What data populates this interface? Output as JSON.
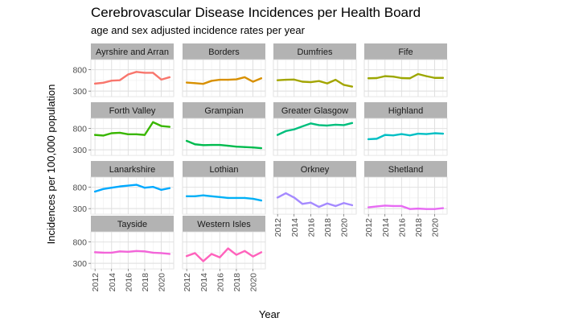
{
  "chart_data": {
    "type": "line",
    "title": "Cerebrovascular Disease Incidences per Health Board",
    "subtitle": "age and sex adjusted incidence rates per year",
    "xlabel": "Year",
    "ylabel": "Incidences per 100,000 population",
    "x": [
      2012,
      2013,
      2014,
      2015,
      2016,
      2017,
      2018,
      2019,
      2020,
      2021
    ],
    "x_ticks": [
      "2012",
      "2014",
      "2016",
      "2018",
      "2020"
    ],
    "y_ticks": [
      "300",
      "800"
    ],
    "xlim": [
      2011.5,
      2021.5
    ],
    "ylim": [
      170,
      1040
    ],
    "grid": true,
    "legend": "none",
    "series": [
      {
        "name": "Ayrshire and Arran",
        "color": "#F8766D",
        "values": [
          475,
          495,
          545,
          555,
          690,
          750,
          730,
          730,
          570,
          625
        ]
      },
      {
        "name": "Borders",
        "color": "#D89000",
        "values": [
          500,
          485,
          470,
          540,
          565,
          565,
          575,
          625,
          520,
          600
        ]
      },
      {
        "name": "Dumfries",
        "color": "#A3A500",
        "values": [
          555,
          565,
          570,
          520,
          510,
          535,
          480,
          565,
          445,
          405
        ]
      },
      {
        "name": "Fife",
        "color": "#9CA700",
        "values": [
          600,
          605,
          650,
          640,
          605,
          600,
          700,
          650,
          610,
          610
        ]
      },
      {
        "name": "Forth Valley",
        "color": "#39B600",
        "values": [
          650,
          635,
          690,
          700,
          665,
          665,
          650,
          950,
          860,
          840
        ]
      },
      {
        "name": "Grampian",
        "color": "#00BB4E",
        "values": [
          510,
          430,
          410,
          415,
          415,
          395,
          375,
          365,
          355,
          340
        ]
      },
      {
        "name": "Greater Glasgow",
        "color": "#00BF7D",
        "values": [
          650,
          740,
          780,
          850,
          920,
          880,
          870,
          890,
          880,
          930
        ]
      },
      {
        "name": "Highland",
        "color": "#00BFC4",
        "values": [
          550,
          560,
          650,
          640,
          670,
          640,
          680,
          670,
          690,
          680
        ]
      },
      {
        "name": "Lanarkshire",
        "color": "#00A9FF",
        "values": [
          700,
          760,
          790,
          820,
          840,
          860,
          790,
          810,
          740,
          780
        ]
      },
      {
        "name": "Lothian",
        "color": "#00B0F6",
        "values": [
          590,
          590,
          610,
          590,
          570,
          550,
          550,
          550,
          530,
          490
        ]
      },
      {
        "name": "Orkney",
        "color": "#A58AFF",
        "values": [
          560,
          660,
          560,
          410,
          440,
          340,
          420,
          360,
          430,
          380
        ]
      },
      {
        "name": "Shetland",
        "color": "#E76BF3",
        "values": [
          330,
          350,
          370,
          360,
          360,
          290,
          300,
          290,
          290,
          310
        ]
      },
      {
        "name": "Tayside",
        "color": "#F365D9",
        "values": [
          560,
          550,
          550,
          580,
          570,
          590,
          580,
          550,
          540,
          520
        ]
      },
      {
        "name": "Western Isles",
        "color": "#FF62BC",
        "values": [
          470,
          540,
          350,
          520,
          440,
          650,
          500,
          590,
          460,
          560
        ]
      }
    ]
  }
}
